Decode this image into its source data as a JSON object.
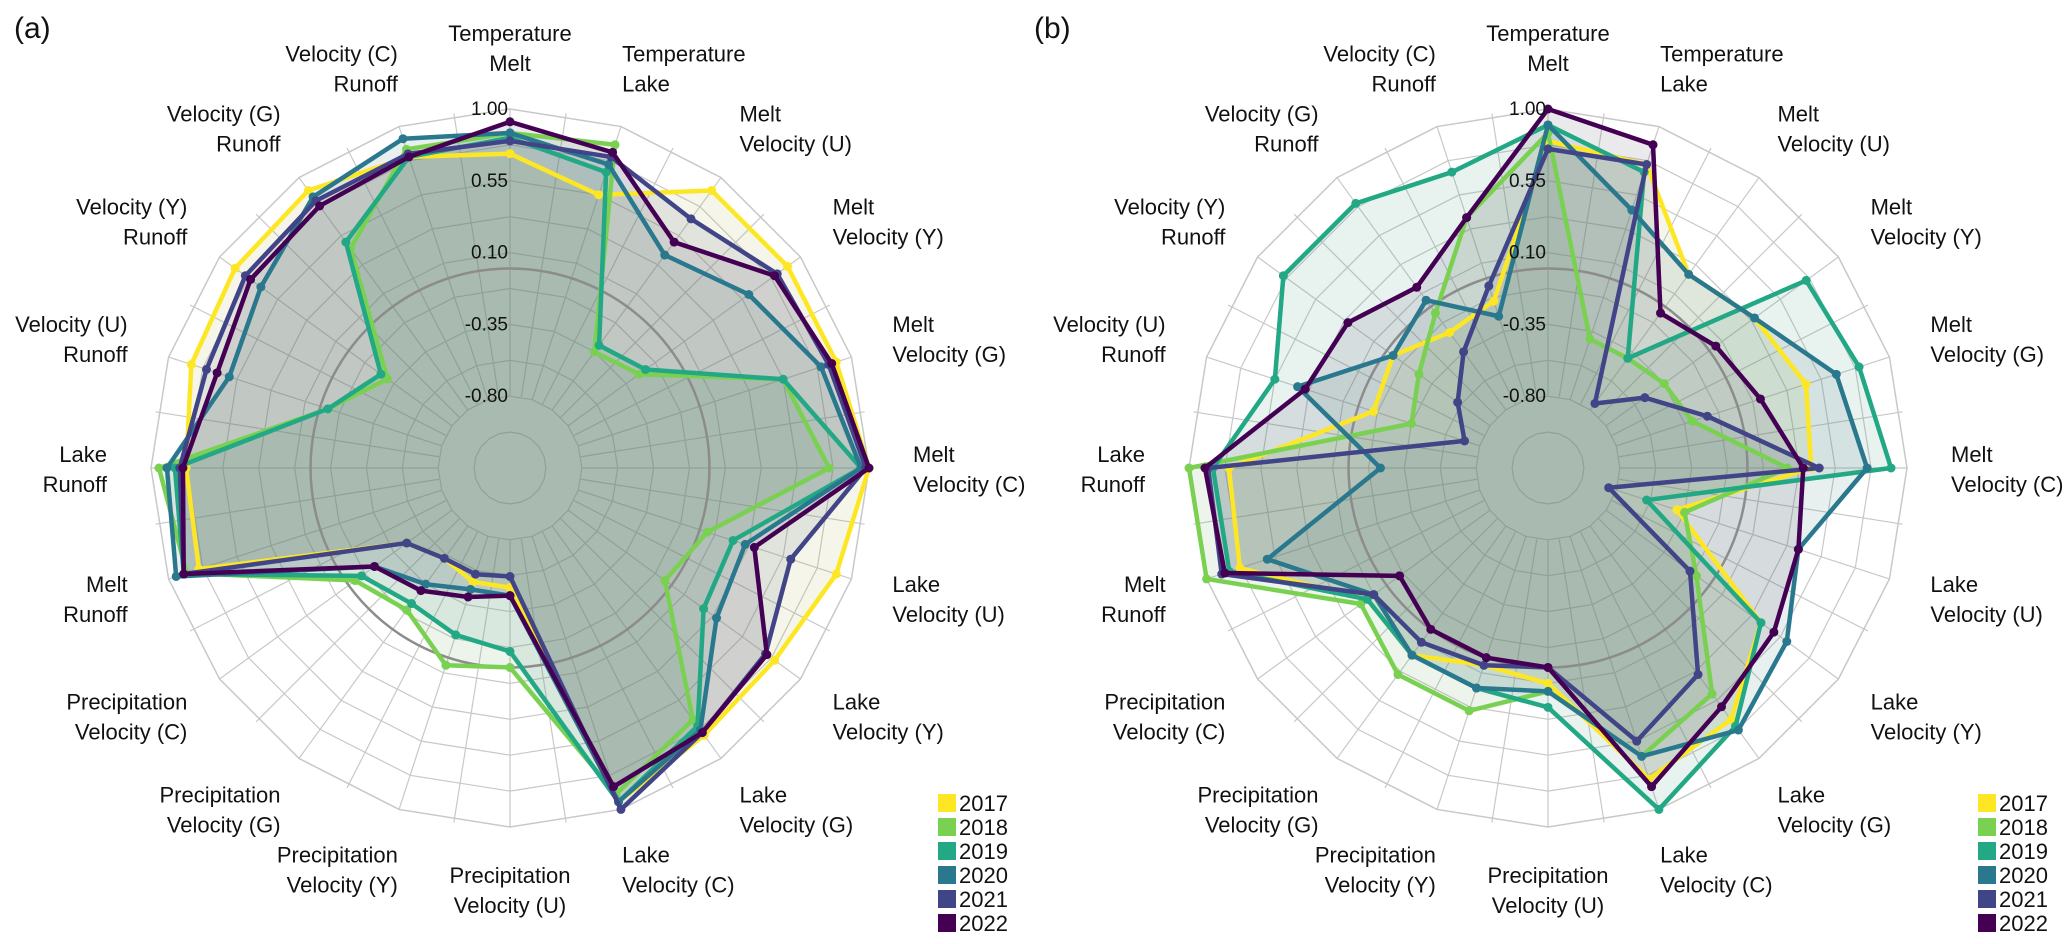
{
  "chart_data": [
    {
      "type": "radar",
      "panel": "(a)",
      "title": "",
      "radial_ticks": [
        "1.00",
        "0.55",
        "0.10",
        "-0.35",
        "-0.80"
      ],
      "rlim": [
        -1.25,
        1.0
      ],
      "reference_circle": 0,
      "grid": true,
      "legend_position": "bottom-right",
      "axes": [
        [
          "Temperature",
          "Melt"
        ],
        [
          "Temperature",
          "Lake"
        ],
        [
          "Melt",
          "Velocity (U)"
        ],
        [
          "Melt",
          "Velocity (Y)"
        ],
        [
          "Melt",
          "Velocity (G)"
        ],
        [
          "Melt",
          "Velocity (C)"
        ],
        [
          "Lake",
          "Velocity (U)"
        ],
        [
          "Lake",
          "Velocity (Y)"
        ],
        [
          "Lake",
          "Velocity (G)"
        ],
        [
          "Lake",
          "Velocity (C)"
        ],
        [
          "Precipitation",
          "Velocity (U)"
        ],
        [
          "Precipitation",
          "Velocity (Y)"
        ],
        [
          "Precipitation",
          "Velocity (G)"
        ],
        [
          "Precipitation",
          "Velocity (C)"
        ],
        [
          "Melt",
          "Runoff"
        ],
        [
          "Lake",
          "Runoff"
        ],
        [
          "Velocity (U)",
          "Runoff"
        ],
        [
          "Velocity (Y)",
          "Runoff"
        ],
        [
          "Velocity (G)",
          "Runoff"
        ],
        [
          "Velocity (C)",
          "Runoff"
        ]
      ],
      "series": [
        {
          "name": "2017",
          "color": "#fde725",
          "values": [
            0.72,
            0.55,
            0.9,
            0.9,
            0.9,
            1.0,
            0.9,
            0.8,
            0.82,
            0.95,
            -0.5,
            -0.5,
            -0.55,
            -0.45,
            0.8,
            0.78,
            0.85,
            0.88,
            0.9,
            0.8
          ]
        },
        {
          "name": "2018",
          "color": "#7ad151",
          "values": [
            0.85,
            0.88,
            -0.35,
            -0.25,
            0.55,
            0.75,
            0.05,
            -0.05,
            0.7,
            0.9,
            0.0,
            0.05,
            -0.15,
            -0.05,
            0.88,
            0.95,
            -0.05,
            -0.3,
            0.45,
            0.85
          ]
        },
        {
          "name": "2019",
          "color": "#22a884",
          "values": [
            0.82,
            0.7,
            -0.3,
            -0.2,
            0.55,
            0.95,
            0.22,
            0.25,
            0.75,
            0.95,
            -0.1,
            -0.15,
            -0.2,
            -0.1,
            0.9,
            0.85,
            -0.05,
            -0.25,
            0.5,
            0.8
          ]
        },
        {
          "name": "2020",
          "color": "#2a788e",
          "values": [
            0.85,
            0.75,
            0.4,
            0.6,
            0.8,
            0.95,
            0.3,
            0.35,
            0.78,
            0.95,
            -0.45,
            -0.45,
            -0.35,
            -0.2,
            0.95,
            0.9,
            0.6,
            0.68,
            0.85,
            0.92
          ]
        },
        {
          "name": "2021",
          "color": "#414487",
          "values": [
            0.8,
            0.8,
            0.68,
            0.82,
            0.85,
            0.98,
            0.6,
            0.73,
            0.8,
            1.0,
            -0.57,
            -0.55,
            -0.55,
            -0.45,
            0.9,
            0.82,
            0.75,
            0.8,
            0.82,
            0.82
          ]
        },
        {
          "name": "2022",
          "color": "#440154",
          "values": [
            0.92,
            0.83,
            0.5,
            0.8,
            0.87,
            1.0,
            0.36,
            0.74,
            0.8,
            0.85,
            -0.45,
            -0.4,
            -0.3,
            -0.2,
            0.9,
            0.8,
            0.68,
            0.76,
            0.78,
            0.8
          ]
        }
      ]
    },
    {
      "type": "radar",
      "panel": "(b)",
      "title": "",
      "radial_ticks": [
        "1.00",
        "0.55",
        "0.10",
        "-0.35",
        "-0.80"
      ],
      "rlim": [
        -1.25,
        1.0
      ],
      "reference_circle": 0,
      "grid": true,
      "legend_position": "bottom-right",
      "axes": [
        [
          "Temperature",
          "Melt"
        ],
        [
          "Temperature",
          "Lake"
        ],
        [
          "Melt",
          "Velocity (U)"
        ],
        [
          "Melt",
          "Velocity (Y)"
        ],
        [
          "Melt",
          "Velocity (G)"
        ],
        [
          "Melt",
          "Velocity (C)"
        ],
        [
          "Lake",
          "Velocity (U)"
        ],
        [
          "Lake",
          "Velocity (Y)"
        ],
        [
          "Lake",
          "Velocity (G)"
        ],
        [
          "Lake",
          "Velocity (C)"
        ],
        [
          "Precipitation",
          "Velocity (U)"
        ],
        [
          "Precipitation",
          "Velocity (Y)"
        ],
        [
          "Precipitation",
          "Velocity (G)"
        ],
        [
          "Precipitation",
          "Velocity (C)"
        ],
        [
          "Melt",
          "Runoff"
        ],
        [
          "Lake",
          "Runoff"
        ],
        [
          "Velocity (U)",
          "Runoff"
        ],
        [
          "Velocity (Y)",
          "Runoff"
        ],
        [
          "Velocity (G)",
          "Runoff"
        ],
        [
          "Velocity (C)",
          "Runoff"
        ]
      ],
      "series": [
        {
          "name": "2017",
          "color": "#fde725",
          "values": [
            0.8,
            0.75,
            0.25,
            0.35,
            0.45,
            0.4,
            -0.4,
            0.4,
            0.7,
            0.8,
            0.1,
            0.05,
            0.2,
            0.15,
            0.78,
            0.75,
            -0.1,
            -0.05,
            -0.2,
            -0.15
          ]
        },
        {
          "name": "2018",
          "color": "#7ad151",
          "values": [
            0.85,
            -0.4,
            -0.4,
            -0.35,
            -0.3,
            0.25,
            -0.35,
            -0.1,
            0.5,
            0.65,
            0.15,
            0.35,
            0.35,
            0.2,
            1.0,
            1.0,
            -0.35,
            -0.25,
            -0.05,
            0.4
          ]
        },
        {
          "name": "2019",
          "color": "#22a884",
          "values": [
            0.9,
            0.7,
            -0.4,
            0.75,
            0.8,
            0.9,
            -0.6,
            0.4,
            0.75,
            1.0,
            0.25,
            0.2,
            0.2,
            0.15,
            0.85,
            0.85,
            0.55,
            0.8,
            0.8,
            0.7
          ]
        },
        {
          "name": "2020",
          "color": "#2a788e",
          "values": [
            0.9,
            0.45,
            0.25,
            0.35,
            0.65,
            0.75,
            0.4,
            0.6,
            0.78,
            0.65,
            0.15,
            0.2,
            0.2,
            0.1,
            0.6,
            -0.2,
            0.4,
            -0.05,
            0.05,
            -0.25
          ]
        },
        {
          "name": "2021",
          "color": "#414487",
          "values": [
            0.75,
            0.75,
            -0.75,
            -0.5,
            -0.2,
            0.45,
            -0.85,
            -0.15,
            0.35,
            0.55,
            0.0,
            0.05,
            0.1,
            0.1,
            0.9,
            0.88,
            -0.7,
            -0.55,
            -0.35,
            -0.05
          ]
        },
        {
          "name": "2022",
          "color": "#440154",
          "values": [
            1.0,
            0.88,
            -0.05,
            0.05,
            0.15,
            0.35,
            0.4,
            0.5,
            0.6,
            0.85,
            0.0,
            0.0,
            0.0,
            -0.1,
            0.88,
            0.9,
            0.35,
            0.3,
            0.15,
            0.4
          ]
        }
      ]
    }
  ]
}
